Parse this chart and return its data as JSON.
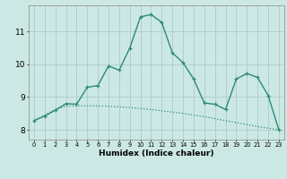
{
  "x": [
    0,
    1,
    2,
    3,
    4,
    5,
    6,
    7,
    8,
    9,
    10,
    11,
    12,
    13,
    14,
    15,
    16,
    17,
    18,
    19,
    20,
    21,
    22,
    23
  ],
  "line1_y": [
    8.28,
    8.45,
    8.62,
    8.72,
    8.73,
    8.73,
    8.73,
    8.72,
    8.7,
    8.68,
    8.65,
    8.62,
    8.58,
    8.54,
    8.5,
    8.45,
    8.4,
    8.34,
    8.28,
    8.22,
    8.16,
    8.1,
    8.05,
    8.0
  ],
  "line2_y": [
    8.28,
    8.42,
    8.6,
    8.8,
    8.78,
    9.3,
    9.35,
    9.95,
    9.82,
    10.5,
    11.45,
    11.52,
    11.28,
    10.35,
    10.05,
    9.55,
    8.82,
    8.78,
    8.62,
    9.55,
    9.72,
    9.6,
    9.05,
    8.0
  ],
  "color": "#2d8b74",
  "bg_color": "#cce8e5",
  "grid_color": "#aacccc",
  "xlabel": "Humidex (Indice chaleur)",
  "xticks": [
    0,
    1,
    2,
    3,
    4,
    5,
    6,
    7,
    8,
    9,
    10,
    11,
    12,
    13,
    14,
    15,
    16,
    17,
    18,
    19,
    20,
    21,
    22,
    23
  ],
  "yticks": [
    8,
    9,
    10,
    11
  ],
  "xlim": [
    -0.5,
    23.5
  ],
  "ylim": [
    7.7,
    11.8
  ]
}
